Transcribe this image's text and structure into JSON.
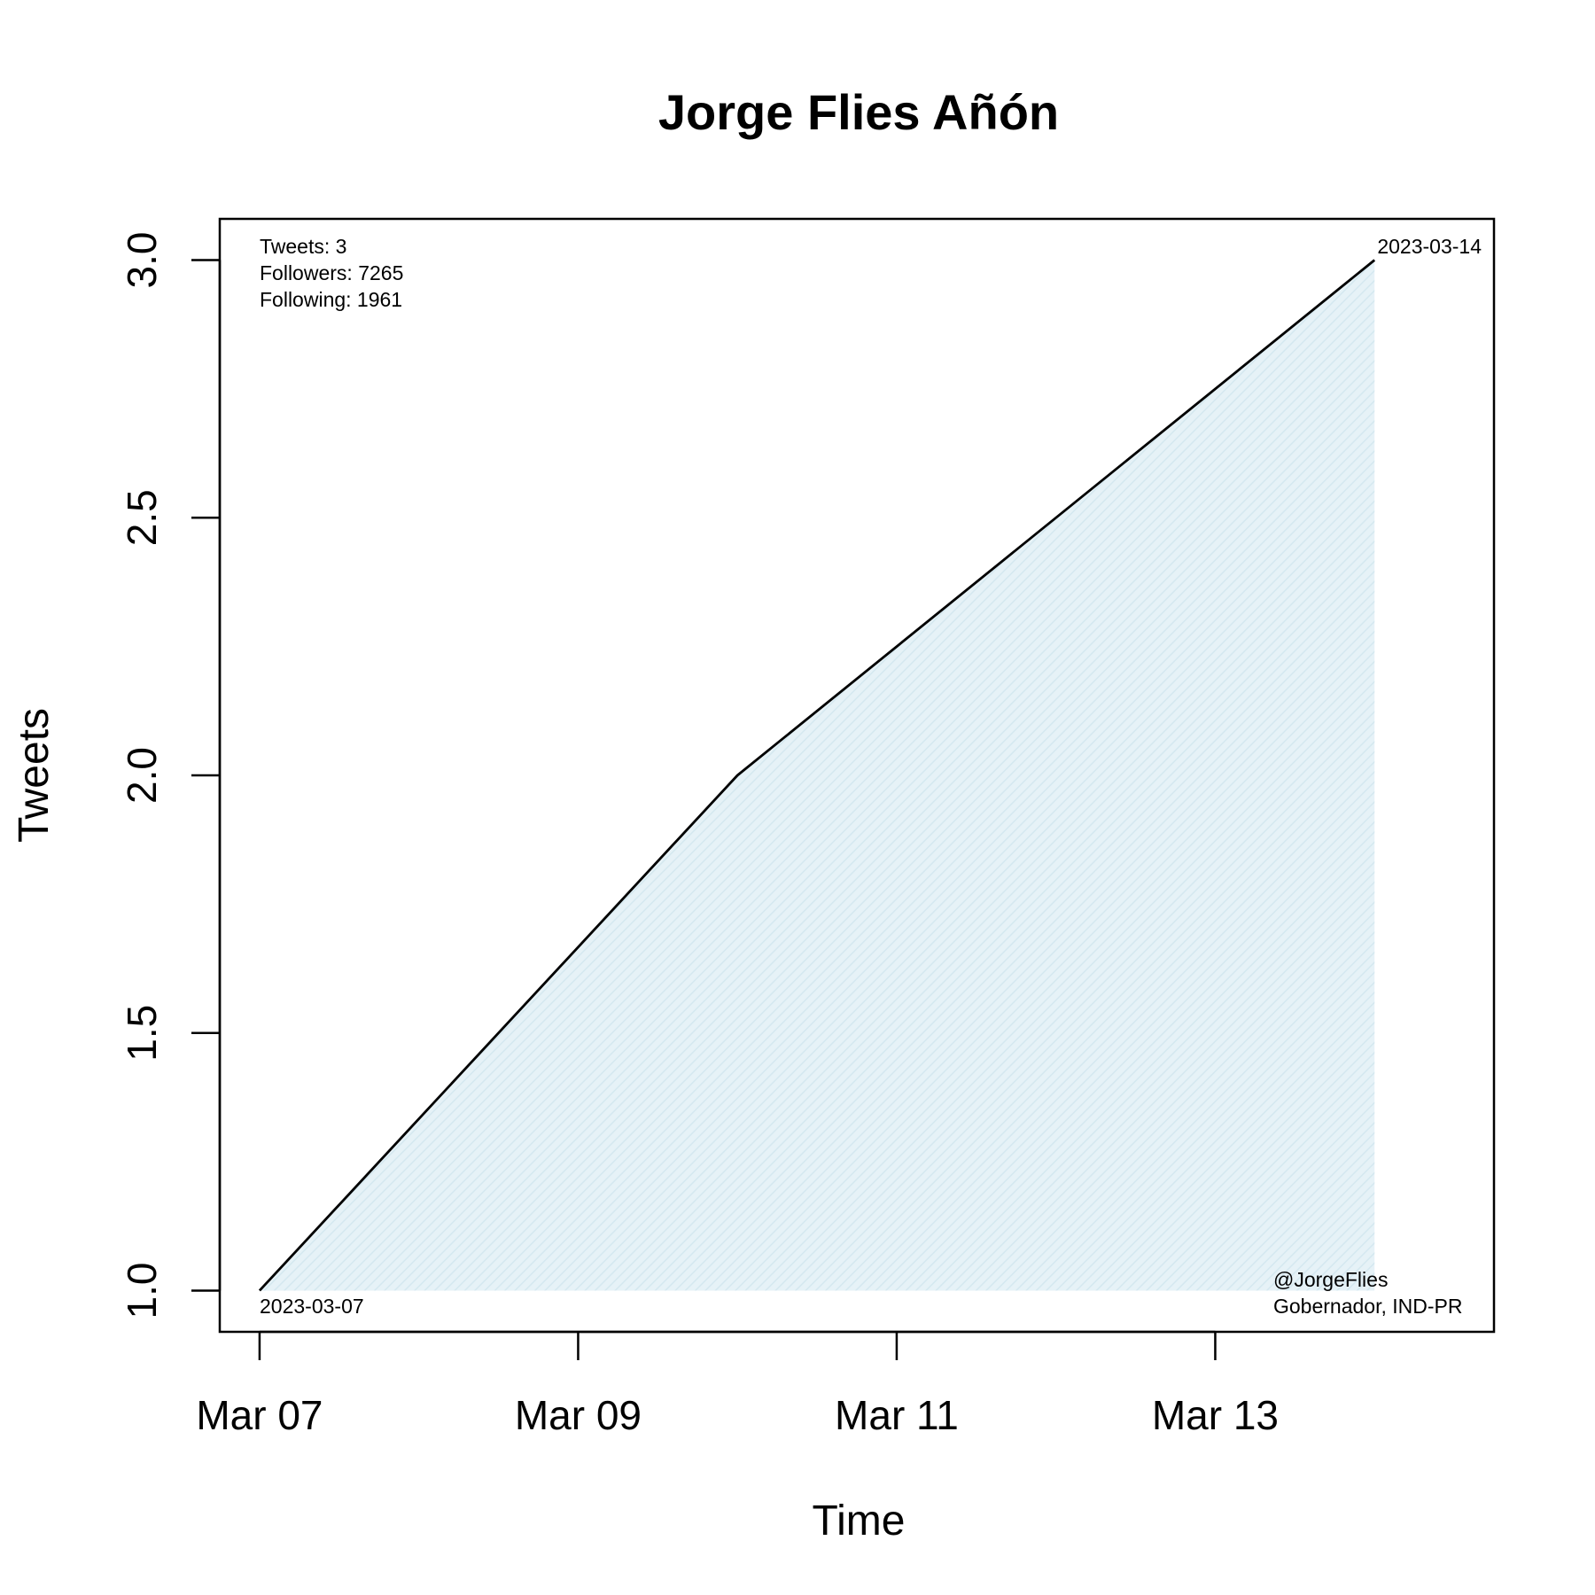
{
  "chart_data": {
    "type": "area",
    "title": "Jorge Flies Añón",
    "xlabel": "Time",
    "ylabel": "Tweets",
    "x": [
      "2023-03-07",
      "2023-03-10",
      "2023-03-14"
    ],
    "y": [
      1,
      2,
      3
    ],
    "xlim": [
      "2023-03-06 18:00",
      "2023-03-14 18:00"
    ],
    "ylim": [
      0.92,
      3.08
    ],
    "x_ticks": [
      "2023-03-07",
      "2023-03-09",
      "2023-03-11",
      "2023-03-13"
    ],
    "x_tick_labels": [
      "Mar 07",
      "Mar 09",
      "Mar 11",
      "Mar 13"
    ],
    "y_ticks": [
      1.0,
      1.5,
      2.0,
      2.5,
      3.0
    ],
    "y_tick_labels": [
      "1.0",
      "1.5",
      "2.0",
      "2.5",
      "3.0"
    ],
    "fill_color": "#e6f2f7",
    "line_color": "#000000",
    "grid": false,
    "annotations": {
      "stats": [
        "Tweets: 3",
        "Followers: 7265",
        "Following: 1961"
      ],
      "start_date": "2023-03-07",
      "end_date": "2023-03-14",
      "handle": "@JorgeFlies",
      "role": "Gobernador, IND-PR"
    }
  }
}
